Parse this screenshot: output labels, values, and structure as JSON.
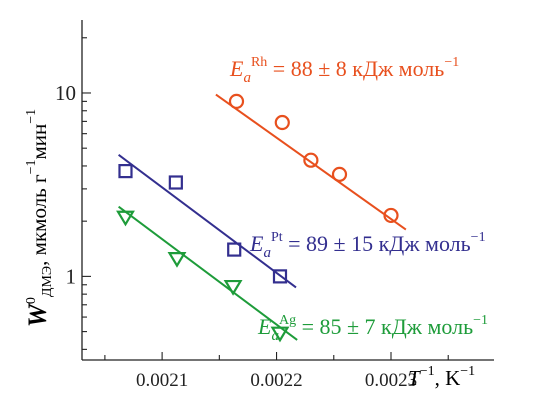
{
  "chart_data": {
    "type": "scatter",
    "xlabel": {
      "main": "T",
      "sup": "−1",
      "unit": ", K",
      "unit_sup": "−1"
    },
    "ylabel": {
      "main": "W",
      "sub": "ДМЭ",
      "sup": "0",
      "unit_a": ", мкмоль г",
      "sup_a": "−1",
      "unit_b": "мин",
      "sup_b": "−1"
    },
    "x_ticks": [
      "0.0021",
      "0.0022",
      "0.0023"
    ],
    "x_tick_values": [
      0.0021,
      0.0022,
      0.0023
    ],
    "y_ticks": [
      "1",
      "10"
    ],
    "y_tick_values": [
      1,
      10
    ],
    "y_scale": "log",
    "xlim": [
      0.00203,
      0.00239
    ],
    "ylim": [
      0.35,
      25
    ],
    "series": [
      {
        "key": "Rh",
        "marker": "circle",
        "color": "#e8501e",
        "points": [
          [
            0.002165,
            9.0
          ],
          [
            0.002205,
            6.9
          ],
          [
            0.00223,
            4.3
          ],
          [
            0.002255,
            3.6
          ],
          [
            0.0023,
            2.15
          ]
        ],
        "fit": [
          [
            0.002147,
            9.8
          ],
          [
            0.002313,
            1.8
          ]
        ],
        "label": {
          "pre": "E",
          "sub": "a",
          "sup": "Rh",
          "text": " = 88 ± 8 кДж моль",
          "sup_end": "−1"
        }
      },
      {
        "key": "Pt",
        "marker": "square",
        "color": "#332f8f",
        "points": [
          [
            0.002068,
            3.75
          ],
          [
            0.002112,
            3.25
          ],
          [
            0.002163,
            1.4
          ],
          [
            0.002203,
            1.0
          ]
        ],
        "fit": [
          [
            0.002062,
            4.6
          ],
          [
            0.002217,
            0.87
          ]
        ],
        "label": {
          "pre": "E",
          "sub": "a",
          "sup": "Pt",
          "text": " = 89 ± 15 кДж моль",
          "sup_end": "−1"
        }
      },
      {
        "key": "Ag",
        "marker": "triangle-down",
        "color": "#1e9c3a",
        "points": [
          [
            0.002068,
            2.1
          ],
          [
            0.002113,
            1.25
          ],
          [
            0.002162,
            0.88
          ],
          [
            0.002203,
            0.49
          ]
        ],
        "fit": [
          [
            0.002062,
            2.4
          ],
          [
            0.002218,
            0.45
          ]
        ],
        "label": {
          "pre": "E",
          "sub": "a",
          "sup": "Ag",
          "text": " = 85 ± 7 кДж моль",
          "sup_end": "−1"
        }
      }
    ]
  }
}
